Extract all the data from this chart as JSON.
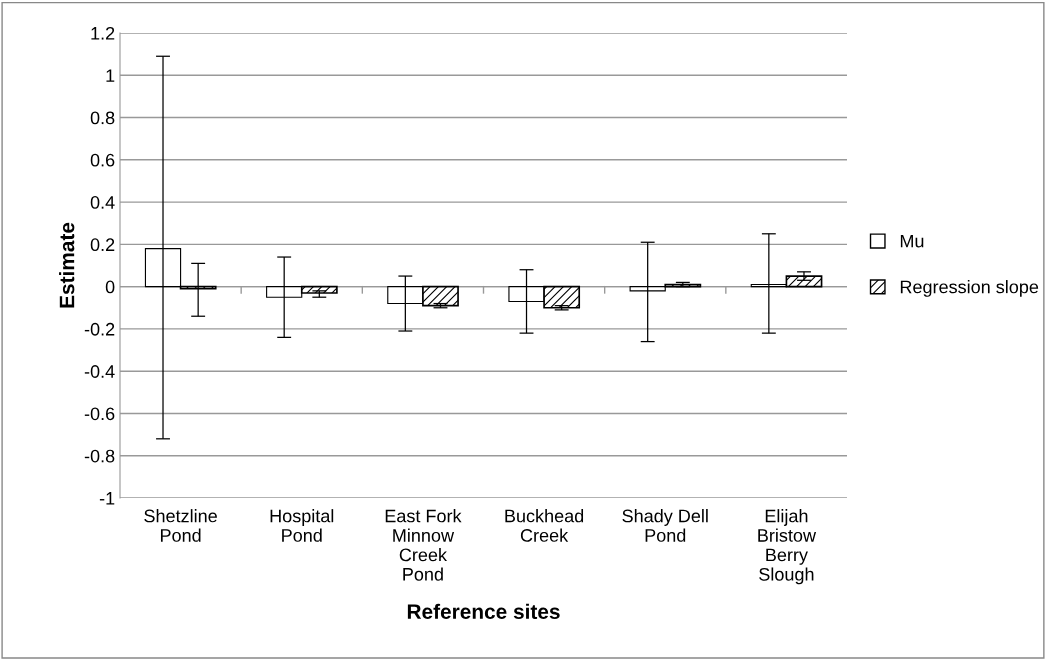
{
  "chart_data": {
    "type": "bar",
    "xlabel": "Reference sites",
    "ylabel": "Estimate",
    "categories": [
      "Shetzline\nPond",
      "Hospital\nPond",
      "East Fork\nMinnow\nCreek\nPond",
      "Buckhead\nCreek",
      "Shady Dell\nPond",
      "Elijah\nBristow\nBerry\nSlough"
    ],
    "series": [
      {
        "name": "Mu",
        "color": "#ffffff",
        "values": [
          0.18,
          -0.05,
          -0.08,
          -0.07,
          -0.02,
          0.01
        ],
        "errors": [
          [
            -0.72,
            1.09
          ],
          [
            -0.24,
            0.14
          ],
          [
            -0.21,
            0.05
          ],
          [
            -0.22,
            0.08
          ],
          [
            -0.26,
            0.21
          ],
          [
            -0.22,
            0.25
          ]
        ]
      },
      {
        "name": "Regression slope",
        "color": "#000000",
        "values": [
          -0.01,
          -0.03,
          -0.09,
          -0.1,
          0.01,
          0.05
        ],
        "errors": [
          [
            -0.14,
            0.11
          ],
          [
            -0.05,
            -0.02
          ],
          [
            -0.1,
            -0.08
          ],
          [
            -0.11,
            -0.09
          ],
          [
            0.0,
            0.02
          ],
          [
            0.03,
            0.07
          ]
        ]
      }
    ],
    "ylim": [
      -1,
      1.2
    ],
    "yticks": [
      -1,
      -0.8,
      -0.6,
      -0.4,
      -0.2,
      0,
      0.2,
      0.4,
      0.6,
      0.8,
      1,
      1.2
    ],
    "grid": "y",
    "legend": "right"
  }
}
